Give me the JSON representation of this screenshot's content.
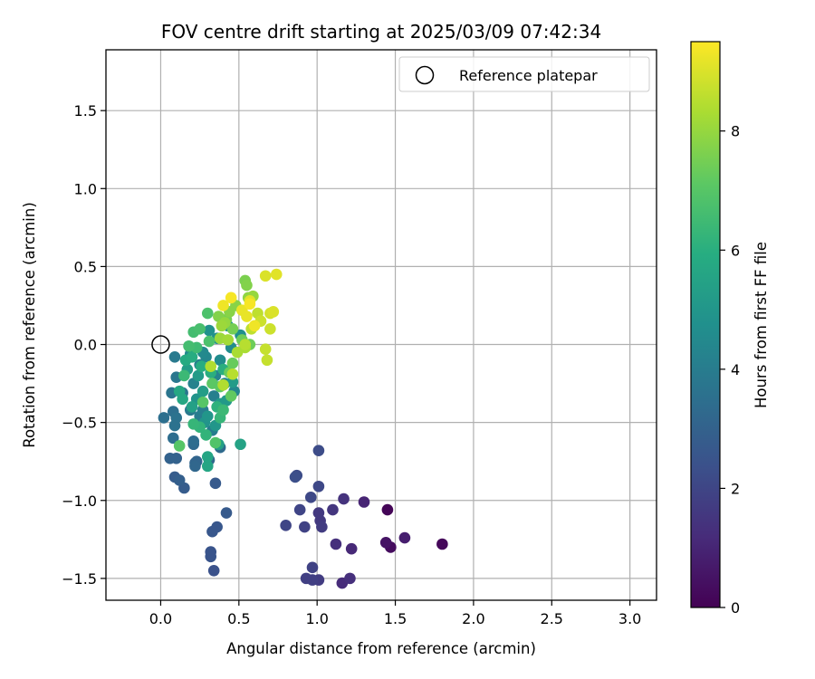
{
  "chart_data": {
    "type": "scatter",
    "title": "FOV centre drift starting at 2025/03/09 07:42:34",
    "xlabel": "Angular distance from reference (arcmin)",
    "ylabel": "Rotation from reference (arcmin)",
    "xlim": [
      -0.35,
      3.17
    ],
    "ylim": [
      -1.64,
      1.89
    ],
    "xticks": [
      0.0,
      0.5,
      1.0,
      1.5,
      2.0,
      2.5,
      3.0
    ],
    "xtick_labels": [
      "0.0",
      "0.5",
      "1.0",
      "1.5",
      "2.0",
      "2.5",
      "3.0"
    ],
    "yticks": [
      -1.5,
      -1.0,
      -0.5,
      0.0,
      0.5,
      1.0,
      1.5
    ],
    "ytick_labels": [
      "−1.5",
      "−1.0",
      "−0.5",
      "0.0",
      "0.5",
      "1.0",
      "1.5"
    ],
    "grid": true,
    "legend": {
      "placement": "top-right",
      "entries": [
        "Reference platepar"
      ]
    },
    "colorbar": {
      "label": "Hours from first FF file",
      "range": [
        0,
        9.5
      ],
      "ticks": [
        0,
        2,
        4,
        6,
        8
      ],
      "tick_labels": [
        "0",
        "2",
        "4",
        "6",
        "8"
      ],
      "colormap": "viridis"
    },
    "reference_point": {
      "x": 0.0,
      "y": 0.0
    },
    "points": [
      [
        1.45,
        -1.06,
        0.1
      ],
      [
        1.8,
        -1.28,
        0.2
      ],
      [
        1.47,
        -1.3,
        0.3
      ],
      [
        1.44,
        -1.27,
        0.5
      ],
      [
        1.56,
        -1.24,
        0.8
      ],
      [
        1.3,
        -1.01,
        1.0
      ],
      [
        1.22,
        -1.31,
        1.1
      ],
      [
        1.16,
        -1.53,
        1.2
      ],
      [
        1.21,
        -1.5,
        1.3
      ],
      [
        1.12,
        -1.28,
        1.3
      ],
      [
        1.17,
        -0.99,
        1.4
      ],
      [
        1.1,
        -1.06,
        1.5
      ],
      [
        1.02,
        -1.13,
        1.6
      ],
      [
        1.01,
        -1.08,
        1.6
      ],
      [
        1.03,
        -1.17,
        1.7
      ],
      [
        1.01,
        -1.51,
        1.7
      ],
      [
        0.97,
        -1.51,
        1.8
      ],
      [
        0.93,
        -1.5,
        1.8
      ],
      [
        0.97,
        -1.43,
        1.9
      ],
      [
        0.92,
        -1.17,
        1.9
      ],
      [
        0.8,
        -1.16,
        2.0
      ],
      [
        0.89,
        -1.06,
        2.0
      ],
      [
        0.96,
        -0.98,
        2.1
      ],
      [
        1.01,
        -0.91,
        2.1
      ],
      [
        1.01,
        -0.68,
        2.2
      ],
      [
        0.87,
        -0.84,
        2.2
      ],
      [
        0.86,
        -0.85,
        2.3
      ],
      [
        0.34,
        -1.45,
        2.4
      ],
      [
        0.32,
        -1.36,
        2.5
      ],
      [
        0.32,
        -1.33,
        2.5
      ],
      [
        0.33,
        -1.2,
        2.6
      ],
      [
        0.36,
        -1.17,
        2.6
      ],
      [
        0.42,
        -1.08,
        2.7
      ],
      [
        0.35,
        -0.89,
        2.7
      ],
      [
        0.15,
        -0.92,
        2.8
      ],
      [
        0.09,
        -0.85,
        2.8
      ],
      [
        0.12,
        -0.87,
        2.9
      ],
      [
        0.06,
        -0.73,
        3.0
      ],
      [
        0.1,
        -0.73,
        3.0
      ],
      [
        0.22,
        -0.76,
        3.1
      ],
      [
        0.23,
        -0.75,
        3.1
      ],
      [
        0.22,
        -0.78,
        3.2
      ],
      [
        0.31,
        -0.74,
        3.2
      ],
      [
        0.38,
        -0.66,
        3.3
      ],
      [
        0.21,
        -0.64,
        3.3
      ],
      [
        0.08,
        -0.6,
        3.4
      ],
      [
        0.21,
        -0.62,
        3.4
      ],
      [
        0.02,
        -0.47,
        3.5
      ],
      [
        0.08,
        -0.43,
        3.5
      ],
      [
        0.09,
        -0.52,
        3.6
      ],
      [
        0.1,
        -0.47,
        3.6
      ],
      [
        0.07,
        -0.31,
        3.7
      ],
      [
        0.14,
        -0.31,
        3.7
      ],
      [
        0.1,
        -0.21,
        3.8
      ],
      [
        0.09,
        -0.08,
        3.9
      ],
      [
        0.19,
        -0.42,
        3.9
      ],
      [
        0.25,
        -0.46,
        4.0
      ],
      [
        0.33,
        -0.55,
        4.0
      ],
      [
        0.27,
        -0.42,
        4.1
      ],
      [
        0.34,
        -0.33,
        4.1
      ],
      [
        0.21,
        -0.25,
        4.2
      ],
      [
        0.25,
        -0.13,
        4.2
      ],
      [
        0.35,
        -0.2,
        4.3
      ],
      [
        0.41,
        -0.25,
        4.3
      ],
      [
        0.47,
        -0.3,
        4.4
      ],
      [
        0.29,
        -0.08,
        4.4
      ],
      [
        0.19,
        -0.06,
        4.5
      ],
      [
        0.27,
        -0.05,
        4.5
      ],
      [
        0.38,
        -0.1,
        4.6
      ],
      [
        0.45,
        -0.02,
        4.6
      ],
      [
        0.51,
        0.06,
        4.7
      ],
      [
        0.36,
        0.04,
        4.7
      ],
      [
        0.31,
        0.09,
        4.8
      ],
      [
        0.43,
        0.12,
        4.8
      ],
      [
        0.23,
        -0.35,
        4.9
      ],
      [
        0.28,
        -0.5,
        4.9
      ],
      [
        0.35,
        -0.52,
        5.0
      ],
      [
        0.3,
        -0.46,
        5.0
      ],
      [
        0.38,
        -0.38,
        5.1
      ],
      [
        0.42,
        -0.36,
        5.1
      ],
      [
        0.46,
        -0.24,
        5.2
      ],
      [
        0.24,
        -0.2,
        5.2
      ],
      [
        0.17,
        -0.16,
        5.3
      ],
      [
        0.27,
        -0.3,
        5.3
      ],
      [
        0.2,
        -0.4,
        5.4
      ],
      [
        0.37,
        -0.64,
        5.4
      ],
      [
        0.51,
        -0.64,
        5.5
      ],
      [
        0.3,
        -0.78,
        5.6
      ],
      [
        0.3,
        -0.72,
        5.6
      ],
      [
        0.14,
        -0.35,
        5.7
      ],
      [
        0.12,
        -0.3,
        5.7
      ],
      [
        0.16,
        -0.1,
        5.8
      ],
      [
        0.2,
        -0.08,
        5.9
      ],
      [
        0.26,
        -0.14,
        5.9
      ],
      [
        0.32,
        -0.18,
        6.0
      ],
      [
        0.4,
        -0.16,
        6.0
      ],
      [
        0.36,
        -0.4,
        6.1
      ],
      [
        0.29,
        -0.58,
        6.2
      ],
      [
        0.25,
        -0.53,
        6.2
      ],
      [
        0.21,
        -0.51,
        6.3
      ],
      [
        0.38,
        -0.47,
        6.3
      ],
      [
        0.4,
        -0.42,
        6.4
      ],
      [
        0.15,
        -0.2,
        6.4
      ],
      [
        0.23,
        -0.02,
        6.5
      ],
      [
        0.18,
        -0.01,
        6.6
      ],
      [
        0.21,
        0.08,
        6.6
      ],
      [
        0.25,
        0.1,
        6.7
      ],
      [
        0.3,
        0.2,
        6.8
      ],
      [
        0.31,
        0.02,
        6.8
      ],
      [
        0.35,
        -0.63,
        6.9
      ],
      [
        0.12,
        -0.65,
        7.0
      ],
      [
        0.27,
        -0.37,
        7.0
      ],
      [
        0.33,
        -0.25,
        7.1
      ],
      [
        0.38,
        -0.27,
        7.1
      ],
      [
        0.45,
        -0.33,
        7.2
      ],
      [
        0.44,
        -0.18,
        7.3
      ],
      [
        0.46,
        -0.12,
        7.3
      ],
      [
        0.52,
        0.03,
        7.4
      ],
      [
        0.57,
        0.0,
        7.4
      ],
      [
        0.46,
        0.1,
        7.5
      ],
      [
        0.42,
        0.16,
        7.5
      ],
      [
        0.54,
        0.41,
        7.6
      ],
      [
        0.55,
        0.38,
        7.7
      ],
      [
        0.37,
        0.18,
        7.7
      ],
      [
        0.44,
        0.21,
        7.8
      ],
      [
        0.48,
        0.25,
        7.8
      ],
      [
        0.56,
        0.3,
        7.9
      ],
      [
        0.59,
        0.31,
        8.0
      ],
      [
        0.41,
        0.14,
        8.0
      ],
      [
        0.39,
        0.12,
        8.1
      ],
      [
        0.38,
        0.04,
        8.1
      ],
      [
        0.43,
        0.03,
        8.2
      ],
      [
        0.49,
        -0.05,
        8.3
      ],
      [
        0.54,
        -0.02,
        8.3
      ],
      [
        0.32,
        -0.14,
        8.4
      ],
      [
        0.4,
        -0.26,
        8.4
      ],
      [
        0.46,
        -0.19,
        8.5
      ],
      [
        0.54,
        0.0,
        8.5
      ],
      [
        0.58,
        0.1,
        8.6
      ],
      [
        0.62,
        0.2,
        8.6
      ],
      [
        0.68,
        -0.1,
        8.7
      ],
      [
        0.67,
        -0.03,
        8.7
      ],
      [
        0.64,
        0.15,
        8.8
      ],
      [
        0.7,
        0.1,
        8.8
      ],
      [
        0.7,
        0.2,
        8.9
      ],
      [
        0.72,
        0.21,
        9.0
      ],
      [
        0.67,
        0.44,
        9.0
      ],
      [
        0.74,
        0.45,
        9.1
      ],
      [
        0.57,
        0.28,
        9.1
      ],
      [
        0.52,
        0.22,
        9.2
      ],
      [
        0.55,
        0.18,
        9.2
      ],
      [
        0.6,
        0.12,
        9.3
      ],
      [
        0.4,
        0.25,
        9.3
      ],
      [
        0.45,
        0.3,
        9.4
      ],
      [
        0.57,
        0.26,
        9.4
      ]
    ]
  }
}
